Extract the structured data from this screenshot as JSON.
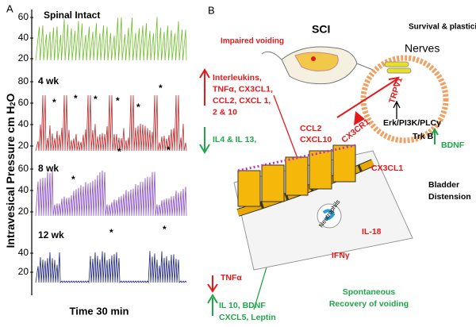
{
  "panel_a": {
    "label": "A",
    "y_axis_title": {
      "main": "Intravesical Pressure  cm H",
      "sub": "2",
      "end": "O"
    },
    "x_axis_title": "Time 30 min",
    "star": "*",
    "traces": [
      {
        "label": "Spinal Intact",
        "ticks": [
          "60",
          "40",
          "20"
        ]
      },
      {
        "label": "4 wk",
        "ticks": [
          "80",
          "60",
          "40",
          "20"
        ]
      },
      {
        "label": "8 wk",
        "ticks": [
          "60",
          "40",
          "20"
        ]
      },
      {
        "label": "12 wk",
        "ticks": [
          "40",
          "20"
        ]
      }
    ]
  },
  "panel_b": {
    "label": "B",
    "sci": "SCI",
    "survival": "Survival & plasticity",
    "nerves": "Nerves",
    "impaired": "Impaired voiding",
    "up_list": [
      "Interleukins,",
      "TNFα, CX3CL1,",
      "CCL2, CXCL 1,",
      "2 & 10"
    ],
    "down_list": "IL4 & IL 13,",
    "ccl": [
      "CCL2",
      "CXCL10"
    ],
    "trpv1": "TRPV1",
    "cx3cr1": "CX3CR1",
    "erk": "Erk/PI3K/PLCγ",
    "trkb": "Trk B",
    "bdnf": "BDNF",
    "cx3cl1": "CX3CL1",
    "distension": [
      "Bladder",
      "Distension"
    ],
    "neutrophils": "Neutrophils",
    "il18": "IL-18",
    "ifn": "IFNγ",
    "tnf": "TNFα",
    "il10": [
      "IL 10, BDNF",
      "CXCL5, Leptin"
    ],
    "recovery": [
      "Spontaneous",
      "Recovery of voiding"
    ]
  }
}
